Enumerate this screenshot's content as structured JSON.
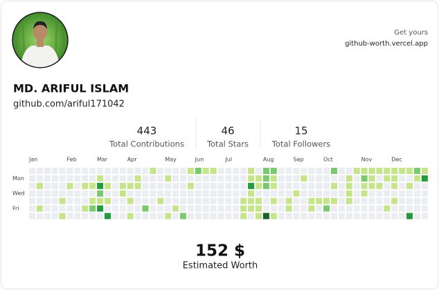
{
  "cta": {
    "line1": "Get yours",
    "line2": "github-worth.vercel.app"
  },
  "profile": {
    "name": "MD. ARIFUL ISLAM",
    "username": "github.com/ariful171042"
  },
  "stats": [
    {
      "value": 443,
      "label": "Total Contributions"
    },
    {
      "value": 46,
      "label": "Total Stars"
    },
    {
      "value": 15,
      "label": "Total Followers"
    }
  ],
  "calendar": {
    "months": [
      "Jan",
      "Feb",
      "Mar",
      "Apr",
      "May",
      "Jun",
      "Jul",
      "Aug",
      "Sep",
      "Oct",
      "Nov",
      "Dec"
    ],
    "days": [
      "Mon",
      "Wed",
      "Fri"
    ],
    "colors": [
      "#ebedf0",
      "#c6e48b",
      "#7bc96f",
      "#239a3b",
      "#196127"
    ],
    "weeks": [
      [
        0,
        0,
        0,
        0,
        0,
        0,
        0
      ],
      [
        0,
        0,
        1,
        0,
        0,
        1,
        0
      ],
      [
        0,
        0,
        0,
        0,
        0,
        0,
        0
      ],
      [
        0,
        0,
        0,
        0,
        0,
        0,
        0
      ],
      [
        0,
        0,
        0,
        0,
        1,
        0,
        1
      ],
      [
        0,
        0,
        1,
        0,
        0,
        0,
        0
      ],
      [
        0,
        0,
        0,
        0,
        0,
        0,
        0
      ],
      [
        0,
        0,
        1,
        0,
        0,
        1,
        0
      ],
      [
        0,
        0,
        1,
        0,
        1,
        2,
        0
      ],
      [
        0,
        1,
        3,
        2,
        1,
        3,
        0
      ],
      [
        0,
        0,
        1,
        0,
        1,
        0,
        3
      ],
      [
        0,
        0,
        0,
        0,
        0,
        0,
        0
      ],
      [
        0,
        0,
        1,
        1,
        0,
        0,
        0
      ],
      [
        0,
        0,
        1,
        0,
        1,
        0,
        1
      ],
      [
        0,
        1,
        1,
        0,
        0,
        0,
        0
      ],
      [
        0,
        0,
        0,
        0,
        0,
        2,
        0
      ],
      [
        1,
        0,
        0,
        0,
        0,
        0,
        0
      ],
      [
        0,
        0,
        0,
        0,
        1,
        0,
        0
      ],
      [
        0,
        1,
        0,
        0,
        0,
        0,
        1
      ],
      [
        0,
        0,
        0,
        0,
        0,
        1,
        0
      ],
      [
        0,
        0,
        0,
        0,
        0,
        0,
        2
      ],
      [
        1,
        0,
        1,
        0,
        0,
        0,
        0
      ],
      [
        2,
        0,
        0,
        0,
        0,
        0,
        0
      ],
      [
        1,
        0,
        0,
        0,
        0,
        0,
        0
      ],
      [
        1,
        0,
        0,
        0,
        0,
        0,
        0
      ],
      [
        0,
        0,
        0,
        0,
        0,
        0,
        0
      ],
      [
        0,
        0,
        0,
        0,
        0,
        0,
        0
      ],
      [
        0,
        0,
        0,
        0,
        0,
        0,
        0
      ],
      [
        0,
        0,
        0,
        0,
        1,
        1,
        1
      ],
      [
        1,
        1,
        3,
        1,
        1,
        1,
        0
      ],
      [
        0,
        1,
        1,
        0,
        1,
        1,
        1
      ],
      [
        2,
        2,
        2,
        0,
        0,
        0,
        4
      ],
      [
        2,
        1,
        1,
        0,
        1,
        0,
        1
      ],
      [
        0,
        0,
        0,
        0,
        0,
        0,
        0
      ],
      [
        0,
        0,
        0,
        0,
        1,
        1,
        0
      ],
      [
        0,
        0,
        0,
        1,
        0,
        0,
        0
      ],
      [
        0,
        1,
        0,
        0,
        0,
        0,
        0
      ],
      [
        0,
        0,
        0,
        0,
        1,
        1,
        0
      ],
      [
        0,
        0,
        0,
        0,
        1,
        0,
        0
      ],
      [
        0,
        0,
        0,
        0,
        1,
        2,
        0
      ],
      [
        2,
        0,
        1,
        0,
        1,
        0,
        0
      ],
      [
        0,
        0,
        0,
        0,
        0,
        0,
        0
      ],
      [
        0,
        1,
        1,
        1,
        1,
        0,
        0
      ],
      [
        1,
        0,
        0,
        0,
        0,
        0,
        0
      ],
      [
        1,
        2,
        1,
        1,
        0,
        0,
        0
      ],
      [
        1,
        1,
        1,
        0,
        0,
        0,
        0
      ],
      [
        1,
        0,
        1,
        0,
        0,
        0,
        0
      ],
      [
        1,
        1,
        0,
        0,
        0,
        1,
        0
      ],
      [
        1,
        1,
        1,
        0,
        1,
        0,
        0
      ],
      [
        1,
        0,
        0,
        0,
        0,
        0,
        0
      ],
      [
        1,
        0,
        1,
        0,
        0,
        0,
        3
      ],
      [
        2,
        1,
        0,
        0,
        0,
        0,
        0
      ],
      [
        1,
        3,
        0,
        0,
        0,
        0,
        0
      ]
    ]
  },
  "worth": {
    "amount": "152 $",
    "label": "Estimated Worth"
  }
}
